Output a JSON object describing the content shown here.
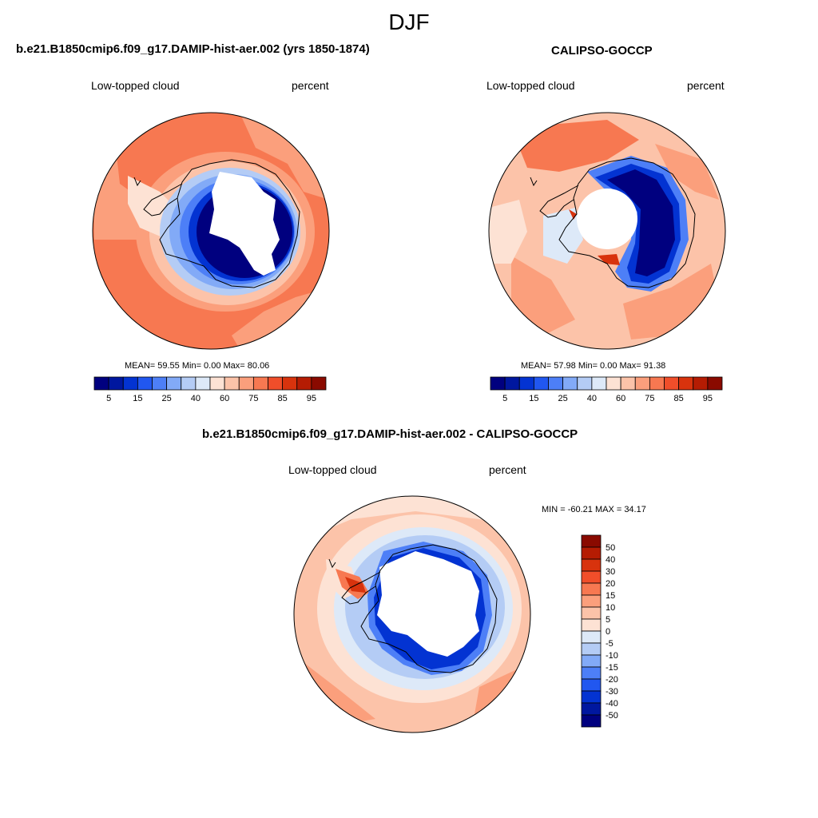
{
  "figure": {
    "season": "DJF"
  },
  "panels": [
    {
      "title": "b.e21.B1850cmip6.f09_g17.DAMIP-hist-aer.002 (yrs 1850-1874)",
      "left_label": "Low-topped cloud",
      "right_label": "percent",
      "stats": "MEAN=  59.55  Min=   0.00  Max=  80.06",
      "colorbar": {
        "orientation": "horizontal",
        "levels": [
          5,
          10,
          15,
          20,
          25,
          30,
          40,
          50,
          60,
          70,
          75,
          80,
          85,
          90,
          95
        ],
        "tick_labels": [
          "5",
          "15",
          "25",
          "40",
          "60",
          "75",
          "85",
          "95"
        ]
      }
    },
    {
      "title": "CALIPSO-GOCCP",
      "left_label": "Low-topped cloud",
      "right_label": "percent",
      "stats": "MEAN=  57.98  Min=   0.00  Max=  91.38",
      "colorbar": {
        "orientation": "horizontal",
        "levels": [
          5,
          10,
          15,
          20,
          25,
          30,
          40,
          50,
          60,
          70,
          75,
          80,
          85,
          90,
          95
        ],
        "tick_labels": [
          "5",
          "15",
          "25",
          "40",
          "60",
          "75",
          "85",
          "95"
        ]
      }
    },
    {
      "title": "b.e21.B1850cmip6.f09_g17.DAMIP-hist-aer.002 - CALIPSO-GOCCP",
      "left_label": "Low-topped cloud",
      "right_label": "percent",
      "stats": "MIN = -60.21 MAX =  34.17",
      "colorbar": {
        "orientation": "vertical",
        "levels": [
          -50,
          -40,
          -30,
          -20,
          -15,
          -10,
          -5,
          0,
          5,
          10,
          15,
          20,
          30,
          40,
          50
        ],
        "tick_labels": [
          "50",
          "40",
          "30",
          "20",
          "15",
          "10",
          "5",
          "0",
          "-5",
          "-10",
          "-15",
          "-20",
          "-30",
          "-40",
          "-50"
        ]
      }
    }
  ],
  "colors": {
    "seq16": [
      "#00007f",
      "#00179f",
      "#0333d2",
      "#2157f0",
      "#4d7ff7",
      "#82aaf7",
      "#b4ccf5",
      "#dde9f8",
      "#fde2d4",
      "#fcc3a9",
      "#fb9f7c",
      "#f77851",
      "#f04e2a",
      "#d8330d",
      "#b51c03",
      "#8a0a00"
    ],
    "land": "#ffffff",
    "coast": "#000000"
  }
}
